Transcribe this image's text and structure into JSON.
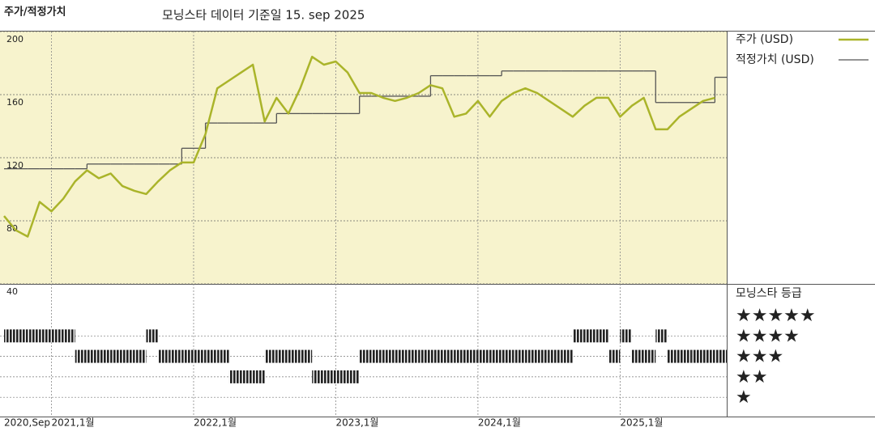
{
  "title": "주가/적정가치",
  "subtitle": "모닝스타 데이터 기준일 15. sep 2025",
  "chart_data": {
    "type": "line",
    "x": [
      "2020-09",
      "2020-10",
      "2020-11",
      "2020-12",
      "2021-01",
      "2021-02",
      "2021-03",
      "2021-04",
      "2021-05",
      "2021-06",
      "2021-07",
      "2021-08",
      "2021-09",
      "2021-10",
      "2021-11",
      "2021-12",
      "2022-01",
      "2022-02",
      "2022-03",
      "2022-04",
      "2022-05",
      "2022-06",
      "2022-07",
      "2022-08",
      "2022-09",
      "2022-10",
      "2022-11",
      "2022-12",
      "2023-01",
      "2023-02",
      "2023-03",
      "2023-04",
      "2023-05",
      "2023-06",
      "2023-07",
      "2023-08",
      "2023-09",
      "2023-10",
      "2023-11",
      "2023-12",
      "2024-01",
      "2024-02",
      "2024-03",
      "2024-04",
      "2024-05",
      "2024-06",
      "2024-07",
      "2024-08",
      "2024-09",
      "2024-10",
      "2024-11",
      "2024-12",
      "2025-01",
      "2025-02",
      "2025-03",
      "2025-04",
      "2025-05",
      "2025-06",
      "2025-07",
      "2025-08",
      "2025-09"
    ],
    "xlim": [
      "2020-09",
      "2025-10"
    ],
    "xticks": [
      {
        "value": "2020-09",
        "label": "2020,Sep"
      },
      {
        "value": "2021-01",
        "label": "2021,1월"
      },
      {
        "value": "2022-01",
        "label": "2022,1월"
      },
      {
        "value": "2023-01",
        "label": "2023,1월"
      },
      {
        "value": "2024-01",
        "label": "2024,1월"
      },
      {
        "value": "2025-01",
        "label": "2025,1월"
      }
    ],
    "ylim": [
      40,
      200
    ],
    "yticks": [
      40,
      80,
      120,
      160,
      200
    ],
    "grid": true,
    "series": [
      {
        "name": "주가 (USD)",
        "color": "#aab42a",
        "values": [
          83,
          74,
          70,
          92,
          86,
          94,
          105,
          112,
          107,
          110,
          102,
          99,
          97,
          105,
          112,
          117,
          117,
          135,
          164,
          169,
          174,
          179,
          143,
          158,
          148,
          164,
          184,
          179,
          181,
          174,
          161,
          161,
          158,
          156,
          158,
          161,
          166,
          164,
          146,
          148,
          156,
          146,
          156,
          161,
          164,
          161,
          156,
          151,
          146,
          153,
          158,
          158,
          146,
          153,
          158,
          138,
          138,
          146,
          151,
          156,
          158
        ]
      },
      {
        "name": "적정가치 (USD)",
        "color": "#555555",
        "step": true,
        "values": [
          113,
          113,
          113,
          113,
          113,
          113,
          113,
          116,
          116,
          116,
          116,
          116,
          116,
          116,
          116,
          126,
          126,
          142,
          142,
          142,
          142,
          142,
          142,
          148,
          148,
          148,
          148,
          148,
          148,
          148,
          159,
          159,
          159,
          159,
          159,
          159,
          172,
          172,
          172,
          172,
          172,
          172,
          175,
          175,
          175,
          175,
          175,
          175,
          175,
          175,
          175,
          175,
          175,
          175,
          175,
          155,
          155,
          155,
          155,
          155,
          171
        ]
      }
    ],
    "rating": {
      "name": "모닝스타 등급",
      "levels": [
        5,
        4,
        3,
        2,
        1
      ],
      "level_labels": [
        "★★★★★",
        "★★★★",
        "★★★",
        "★★",
        "★"
      ],
      "color": "#222222",
      "values": [
        4,
        4,
        4,
        4,
        4,
        4,
        3,
        3,
        3,
        3,
        3,
        3,
        4,
        3,
        3,
        3,
        3,
        3,
        3,
        2,
        2,
        2,
        3,
        3,
        3,
        3,
        2,
        2,
        2,
        2,
        3,
        3,
        3,
        3,
        3,
        3,
        3,
        3,
        3,
        3,
        3,
        3,
        3,
        3,
        3,
        3,
        3,
        3,
        4,
        4,
        4,
        3,
        4,
        3,
        3,
        4,
        3,
        3,
        3,
        3,
        3
      ]
    }
  }
}
